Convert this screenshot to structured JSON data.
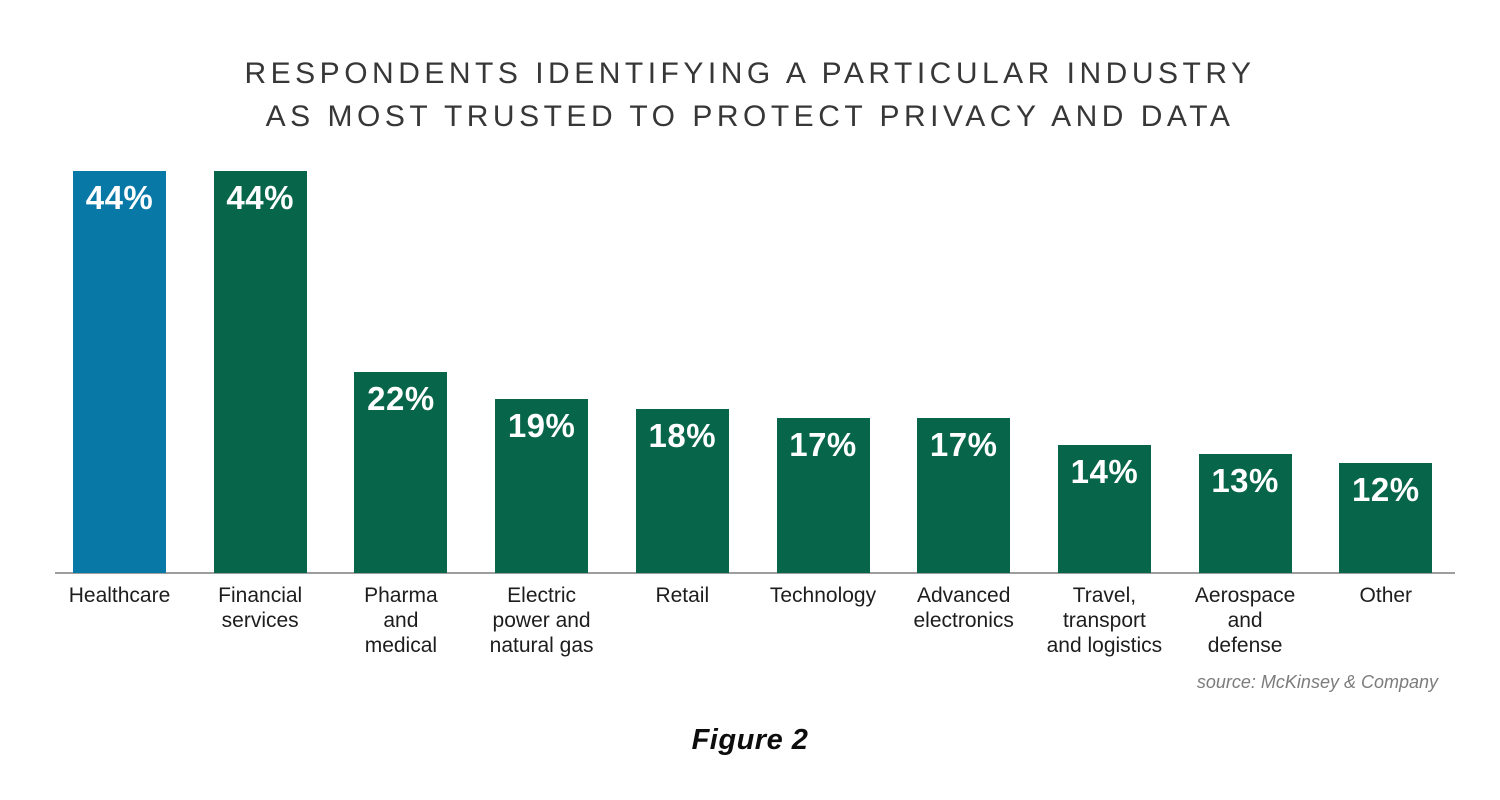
{
  "title": {
    "line1": "RESPONDENTS IDENTIFYING A PARTICULAR INDUSTRY",
    "line2": "AS MOST TRUSTED TO PROTECT PRIVACY AND DATA"
  },
  "source_text": "source: McKinsey & Company",
  "caption": "Figure 2",
  "colors": {
    "highlight_bar": "#0878a6",
    "default_bar": "#076549",
    "axis_line": "#9e9e9e",
    "title_text": "#373737",
    "label_text": "#1d1d1d",
    "value_text": "#ffffff",
    "source_text": "#7c7c7c"
  },
  "chart_data": {
    "type": "bar",
    "title": "RESPONDENTS IDENTIFYING A PARTICULAR INDUSTRY AS MOST TRUSTED TO PROTECT PRIVACY AND DATA",
    "xlabel": "",
    "ylabel": "",
    "unit": "%",
    "ylim": [
      0,
      44
    ],
    "grid": false,
    "legend": "none",
    "categories": [
      "Healthcare",
      "Financial services",
      "Pharma and medical",
      "Electric power and natural gas",
      "Retail",
      "Technology",
      "Advanced electronics",
      "Travel, transport and logistics",
      "Aerospace and defense",
      "Other"
    ],
    "values": [
      44,
      44,
      22,
      19,
      18,
      17,
      17,
      14,
      13,
      12
    ],
    "value_labels": [
      "44%",
      "44%",
      "22%",
      "19%",
      "18%",
      "17%",
      "17%",
      "14%",
      "13%",
      "12%"
    ]
  },
  "bars": [
    {
      "value": 44,
      "value_label": "44%",
      "color": "#0878a6",
      "label_lines": [
        "Healthcare"
      ]
    },
    {
      "value": 44,
      "value_label": "44%",
      "color": "#076549",
      "label_lines": [
        "Financial",
        "services"
      ]
    },
    {
      "value": 22,
      "value_label": "22%",
      "color": "#076549",
      "label_lines": [
        "Pharma",
        "and",
        "medical"
      ]
    },
    {
      "value": 19,
      "value_label": "19%",
      "color": "#076549",
      "label_lines": [
        "Electric",
        "power and",
        "natural gas"
      ]
    },
    {
      "value": 18,
      "value_label": "18%",
      "color": "#076549",
      "label_lines": [
        "Retail"
      ]
    },
    {
      "value": 17,
      "value_label": "17%",
      "color": "#076549",
      "label_lines": [
        "Technology"
      ]
    },
    {
      "value": 17,
      "value_label": "17%",
      "color": "#076549",
      "label_lines": [
        "Advanced",
        "electronics"
      ]
    },
    {
      "value": 14,
      "value_label": "14%",
      "color": "#076549",
      "label_lines": [
        "Travel,",
        "transport",
        "and logistics"
      ]
    },
    {
      "value": 13,
      "value_label": "13%",
      "color": "#076549",
      "label_lines": [
        "Aerospace",
        "and",
        "defense"
      ]
    },
    {
      "value": 12,
      "value_label": "12%",
      "color": "#076549",
      "label_lines": [
        "Other"
      ]
    }
  ]
}
